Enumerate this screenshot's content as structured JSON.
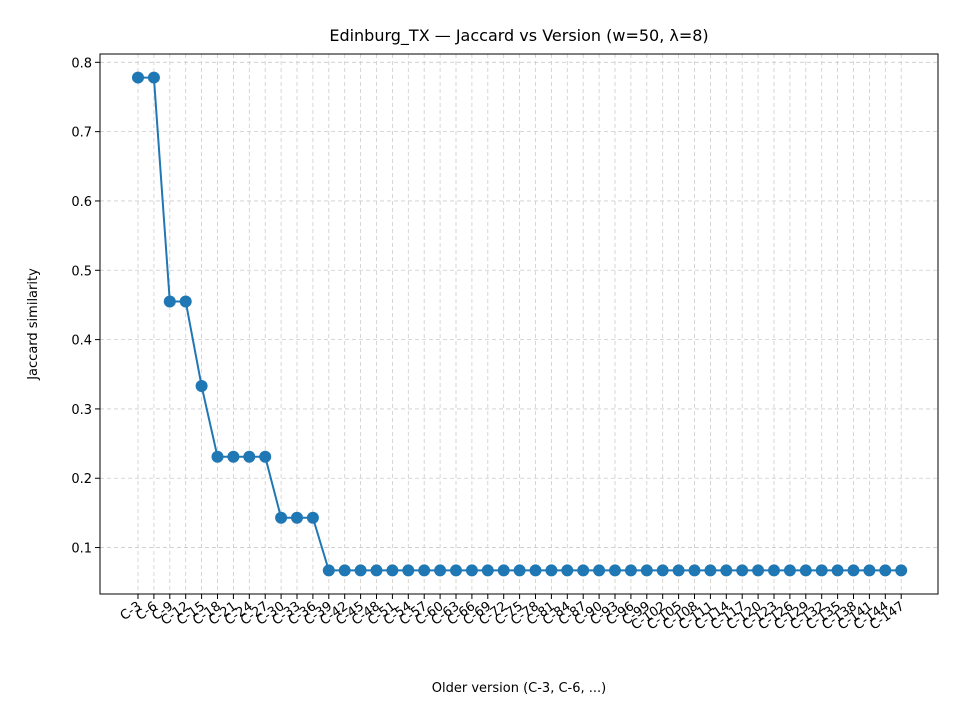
{
  "chart_data": {
    "type": "line",
    "title": "Edinburg_TX — Jaccard vs Version (w=50, λ=8)",
    "xlabel": "Older version (C-3, C-6, ...)",
    "ylabel": "Jaccard similarity",
    "categories": [
      "C-3",
      "C-6",
      "C-9",
      "C-12",
      "C-15",
      "C-18",
      "C-21",
      "C-24",
      "C-27",
      "C-30",
      "C-33",
      "C-36",
      "C-39",
      "C-42",
      "C-45",
      "C-48",
      "C-51",
      "C-54",
      "C-57",
      "C-60",
      "C-63",
      "C-66",
      "C-69",
      "C-72",
      "C-75",
      "C-78",
      "C-81",
      "C-84",
      "C-87",
      "C-90",
      "C-93",
      "C-96",
      "C-99",
      "C-102",
      "C-105",
      "C-108",
      "C-111",
      "C-114",
      "C-117",
      "C-120",
      "C-123",
      "C-126",
      "C-129",
      "C-132",
      "C-135",
      "C-138",
      "C-141",
      "C-144",
      "C-147"
    ],
    "series": [
      {
        "color": "#1f77b4",
        "values": [
          0.778,
          0.778,
          0.455,
          0.455,
          0.333,
          0.231,
          0.231,
          0.231,
          0.231,
          0.143,
          0.143,
          0.143,
          0.067,
          0.067,
          0.067,
          0.067,
          0.067,
          0.067,
          0.067,
          0.067,
          0.067,
          0.067,
          0.067,
          0.067,
          0.067,
          0.067,
          0.067,
          0.067,
          0.067,
          0.067,
          0.067,
          0.067,
          0.067,
          0.067,
          0.067,
          0.067,
          0.067,
          0.067,
          0.067,
          0.067,
          0.067,
          0.067,
          0.067,
          0.067,
          0.067,
          0.067,
          0.067,
          0.067,
          0.067
        ]
      }
    ],
    "ylim": [
      0.033,
      0.812
    ],
    "yticks": [
      0.1,
      0.2,
      0.3,
      0.4,
      0.5,
      0.6,
      0.7,
      0.8
    ],
    "grid": true,
    "marker": "circle"
  }
}
